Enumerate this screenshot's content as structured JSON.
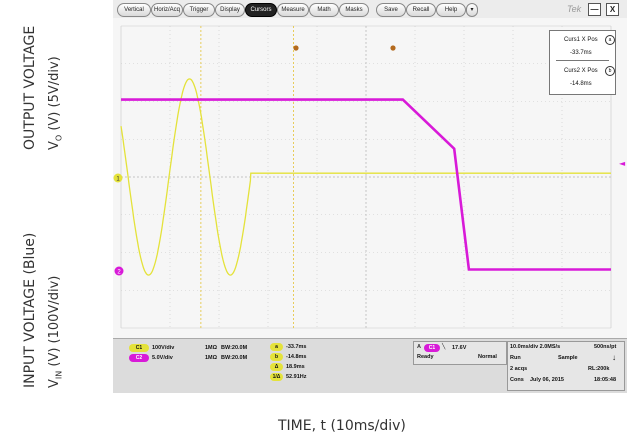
{
  "axis_labels": {
    "y_output_top": "OUTPUT VOLTAGE",
    "y_output_sub": "V",
    "y_output_sub_index": "O",
    "y_output_unit": "(V) (5V/div)",
    "y_input_top": "INPUT VOLTAGE (Blue)",
    "y_input_sub": "V",
    "y_input_sub_index": "IN",
    "y_input_unit": "(V) (100V/div)",
    "x_label": "TIME, t (10ms/div)"
  },
  "menu": {
    "items": [
      "Vertical",
      "Horiz/Acq",
      "Trigger",
      "Display",
      "Cursors",
      "Measure",
      "Math",
      "Masks",
      "Save",
      "Recall",
      "Help"
    ],
    "active": "Cursors",
    "dropdown": "▾",
    "brand": "Tek",
    "minimize": "—",
    "close": "X"
  },
  "markers": {
    "ch1": "1",
    "ch2": "2",
    "trigger_arrow": "◄"
  },
  "cursor_readout": {
    "curs1_label": "Curs1 X Pos",
    "curs1_badge": "a",
    "curs1_value": "-33.7ms",
    "curs2_label": "Curs2 X Pos",
    "curs2_badge": "b",
    "curs2_value": "-14.8ms"
  },
  "status": {
    "ch1_chip": "C1",
    "ch1_scale": "100V/div",
    "ch1_imp": "1MΩ",
    "ch1_bw": "BW:20.0M",
    "ch2_chip": "C2",
    "ch2_scale": "5.0V/div",
    "ch2_imp": "1MΩ",
    "ch2_bw": "BW:20.0M",
    "cursor_vals": [
      "-33.7ms",
      "-14.8ms",
      "18.9ms",
      "52.91Hz"
    ],
    "cursor_chips": [
      "a",
      "b",
      "Δ",
      "1/Δ"
    ],
    "trig_chip": "A",
    "trig_src": "C1",
    "trig_level": "17.6V",
    "state_ready": "Ready",
    "state_mode": "Normal",
    "timebase": "10.0ms/div 2.0MS/s",
    "resolution": "500ns/pt",
    "run": "Run",
    "sample": "Sample",
    "acqs": "2 acqs",
    "rl": "RL:200k",
    "cons": "Cons",
    "date": "July 06, 2015",
    "time": "18:05:48"
  },
  "colors": {
    "ch1": "#e4e23a",
    "ch2": "#d81ad8",
    "grid": "#c9c9c9",
    "cursor": "#e6c84a"
  },
  "trace_data": {
    "ch1": {
      "name": "Input",
      "description_units": "divisions",
      "sine_amplitude_div": 2.6,
      "period_ms": 16.7,
      "cutoff_ms": -23.5,
      "dc_level_after_div": 0.1
    },
    "ch2": {
      "description_units": "divisions",
      "high_level_div": 2.05,
      "ramp_start_ms": 7.5,
      "knee_ms": 18.0,
      "knee_level_div": 0.75,
      "fall_end_ms": 21.0,
      "low_level_div": -2.45
    }
  }
}
